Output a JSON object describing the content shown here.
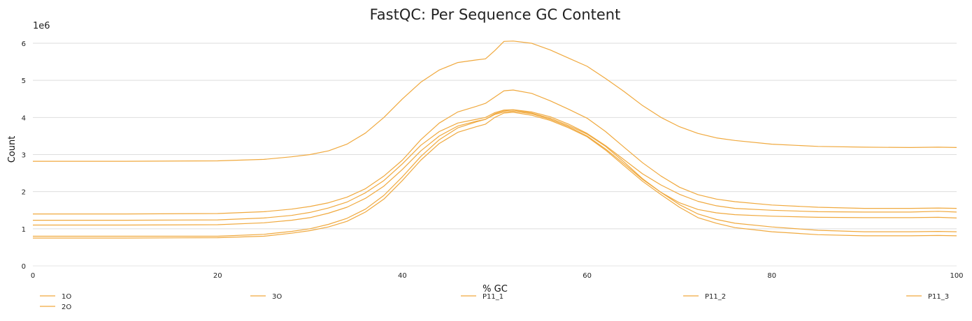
{
  "chart_data": {
    "type": "line",
    "title": "FastQC: Per Sequence GC Content",
    "xlabel": "% GC",
    "ylabel": "Count",
    "y_scale_label": "1e6",
    "xlim": [
      0,
      100
    ],
    "ylim": [
      0,
      6.3
    ],
    "x_ticks": [
      0,
      20,
      40,
      60,
      80,
      100
    ],
    "y_ticks": [
      0,
      1,
      2,
      3,
      4,
      5,
      6
    ],
    "grid": "horizontal",
    "legend_position": "bottom",
    "line_color": "#f0a93e",
    "x": [
      0,
      10,
      20,
      25,
      28,
      30,
      32,
      34,
      36,
      38,
      40,
      42,
      44,
      46,
      48,
      49,
      50,
      51,
      52,
      54,
      56,
      58,
      60,
      62,
      64,
      66,
      68,
      70,
      72,
      74,
      76,
      80,
      85,
      90,
      95,
      98,
      100
    ],
    "series": [
      {
        "name": "1O",
        "values": [
          0.8,
          0.8,
          0.8,
          0.85,
          0.93,
          1.0,
          1.12,
          1.28,
          1.53,
          1.9,
          2.4,
          2.95,
          3.4,
          3.72,
          3.88,
          3.95,
          4.1,
          4.18,
          4.2,
          4.12,
          3.98,
          3.78,
          3.55,
          3.22,
          2.8,
          2.35,
          1.98,
          1.65,
          1.4,
          1.25,
          1.15,
          1.05,
          0.96,
          0.92,
          0.92,
          0.93,
          0.92
        ]
      },
      {
        "name": "2O",
        "values": [
          1.1,
          1.1,
          1.11,
          1.16,
          1.23,
          1.3,
          1.42,
          1.58,
          1.82,
          2.15,
          2.6,
          3.1,
          3.5,
          3.77,
          3.9,
          3.95,
          4.08,
          4.15,
          4.17,
          4.1,
          3.95,
          3.75,
          3.5,
          3.15,
          2.75,
          2.33,
          1.98,
          1.7,
          1.52,
          1.43,
          1.38,
          1.34,
          1.31,
          1.3,
          1.3,
          1.31,
          1.29
        ]
      },
      {
        "name": "3O",
        "values": [
          2.82,
          2.82,
          2.83,
          2.87,
          2.94,
          3.0,
          3.1,
          3.28,
          3.58,
          4.0,
          4.5,
          4.95,
          5.28,
          5.48,
          5.55,
          5.58,
          5.8,
          6.05,
          6.06,
          6.0,
          5.82,
          5.6,
          5.38,
          5.05,
          4.7,
          4.32,
          4.0,
          3.75,
          3.57,
          3.45,
          3.38,
          3.28,
          3.22,
          3.2,
          3.19,
          3.2,
          3.19
        ]
      },
      {
        "name": "P11_1",
        "values": [
          1.4,
          1.4,
          1.41,
          1.46,
          1.53,
          1.6,
          1.7,
          1.85,
          2.08,
          2.42,
          2.85,
          3.4,
          3.85,
          4.15,
          4.3,
          4.38,
          4.55,
          4.72,
          4.74,
          4.65,
          4.45,
          4.22,
          3.98,
          3.62,
          3.2,
          2.78,
          2.42,
          2.12,
          1.92,
          1.8,
          1.73,
          1.64,
          1.58,
          1.55,
          1.55,
          1.56,
          1.55
        ]
      },
      {
        "name": "P11_2",
        "values": [
          0.75,
          0.75,
          0.76,
          0.8,
          0.88,
          0.95,
          1.05,
          1.2,
          1.45,
          1.8,
          2.3,
          2.85,
          3.3,
          3.6,
          3.75,
          3.82,
          4.0,
          4.12,
          4.14,
          4.06,
          3.92,
          3.72,
          3.48,
          3.12,
          2.7,
          2.28,
          1.92,
          1.58,
          1.3,
          1.15,
          1.03,
          0.92,
          0.84,
          0.81,
          0.81,
          0.82,
          0.81
        ]
      },
      {
        "name": "P11_3",
        "values": [
          1.23,
          1.23,
          1.24,
          1.29,
          1.36,
          1.44,
          1.56,
          1.72,
          1.97,
          2.3,
          2.75,
          3.25,
          3.62,
          3.85,
          3.95,
          4.0,
          4.13,
          4.2,
          4.21,
          4.15,
          4.02,
          3.82,
          3.57,
          3.24,
          2.86,
          2.48,
          2.18,
          1.93,
          1.74,
          1.62,
          1.55,
          1.5,
          1.46,
          1.45,
          1.45,
          1.47,
          1.45
        ]
      }
    ]
  }
}
